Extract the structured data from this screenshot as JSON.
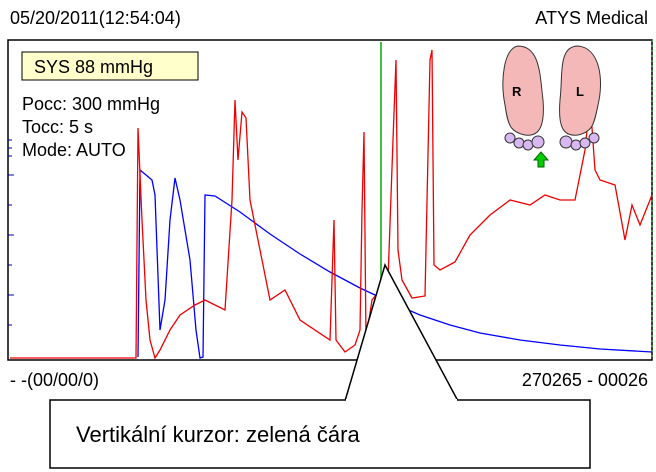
{
  "header": {
    "datetime": "05/20/2011(12:54:04)",
    "brand": "ATYS Medical"
  },
  "panel": {
    "sys": "SYS 88 mmHg",
    "pocc": "Pocc: 300 mmHg",
    "tocc": "Tocc: 5 s",
    "mode": "Mode: AUTO"
  },
  "feet": {
    "right": "R",
    "left": "L"
  },
  "footer": {
    "left": "- -(00/00/0)",
    "right": "270265 - 00026"
  },
  "callout": "Vertikální kurzor: zelená čára"
}
